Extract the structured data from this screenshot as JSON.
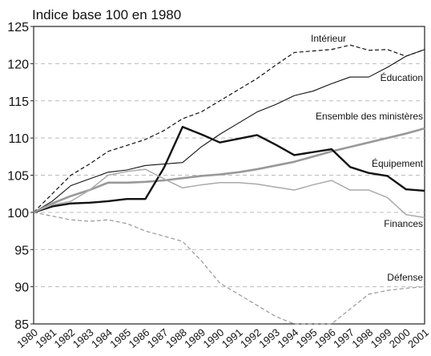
{
  "chart_data": {
    "type": "line",
    "title": "Indice base 100 en 1980",
    "categories": [
      "1980",
      "1981",
      "1982",
      "1983",
      "1984",
      "1985",
      "1986",
      "1987",
      "1988",
      "1989",
      "1990",
      "1991",
      "1992",
      "1993",
      "1994",
      "1995",
      "1996",
      "1997",
      "1998",
      "1999",
      "2000",
      "2001"
    ],
    "ylim": [
      85,
      125
    ],
    "yticks": [
      85,
      90,
      95,
      100,
      105,
      110,
      115,
      120,
      125
    ],
    "grid": true,
    "series": [
      {
        "name": "Intérieur",
        "color": "#111111",
        "dashed": true,
        "line_width": 1.2,
        "values": [
          100,
          102.5,
          105,
          106.5,
          108.2,
          109,
          109.8,
          111,
          112.6,
          113.5,
          115,
          116.5,
          118,
          119.8,
          121.5,
          121.7,
          121.9,
          122.5,
          121.8,
          121.9,
          121,
          121.9
        ]
      },
      {
        "name": "Éducation",
        "color": "#111111",
        "dashed": false,
        "line_width": 1.1,
        "values": [
          100,
          101.5,
          103.6,
          104.5,
          105.4,
          105.7,
          106.3,
          106.5,
          106.7,
          108.8,
          110.5,
          112,
          113.5,
          114.5,
          115.7,
          116.3,
          117.3,
          118.2,
          118.2,
          119.5,
          121,
          121.9
        ]
      },
      {
        "name": "Ensemble des ministères",
        "color": "#999999",
        "dashed": false,
        "line_width": 2.6,
        "values": [
          100,
          101.2,
          102.2,
          103,
          104,
          104,
          104.1,
          104.3,
          104.6,
          104.9,
          105.1,
          105.4,
          105.8,
          106.3,
          106.8,
          107.5,
          108.2,
          108.8,
          109.4,
          110,
          110.6,
          111.3
        ]
      },
      {
        "name": "Équipement",
        "color": "#111111",
        "dashed": false,
        "line_width": 2.4,
        "values": [
          100,
          100.8,
          101.2,
          101.3,
          101.5,
          101.8,
          101.8,
          106,
          111.5,
          110.5,
          109.4,
          109.9,
          110.4,
          109.1,
          107.7,
          108.1,
          108.5,
          106.1,
          105.3,
          104.9,
          103.1,
          102.9
        ]
      },
      {
        "name": "Finances",
        "color": "#aaaaaa",
        "dashed": false,
        "line_width": 1.5,
        "values": [
          100,
          101,
          101.5,
          103,
          105,
          105.5,
          105.8,
          104.5,
          103.3,
          103.7,
          104,
          104,
          103.8,
          103.4,
          103,
          103.7,
          104.3,
          103,
          103,
          102,
          99.7,
          99.3
        ]
      },
      {
        "name": "Défense",
        "color": "#999999",
        "dashed": true,
        "line_width": 1.2,
        "values": [
          100,
          99.5,
          99,
          98.8,
          99,
          98.5,
          97.5,
          96.8,
          96.1,
          93.5,
          90.5,
          89,
          87.5,
          86,
          85,
          85,
          85,
          87,
          89,
          89.5,
          89.8,
          90
        ]
      }
    ]
  }
}
